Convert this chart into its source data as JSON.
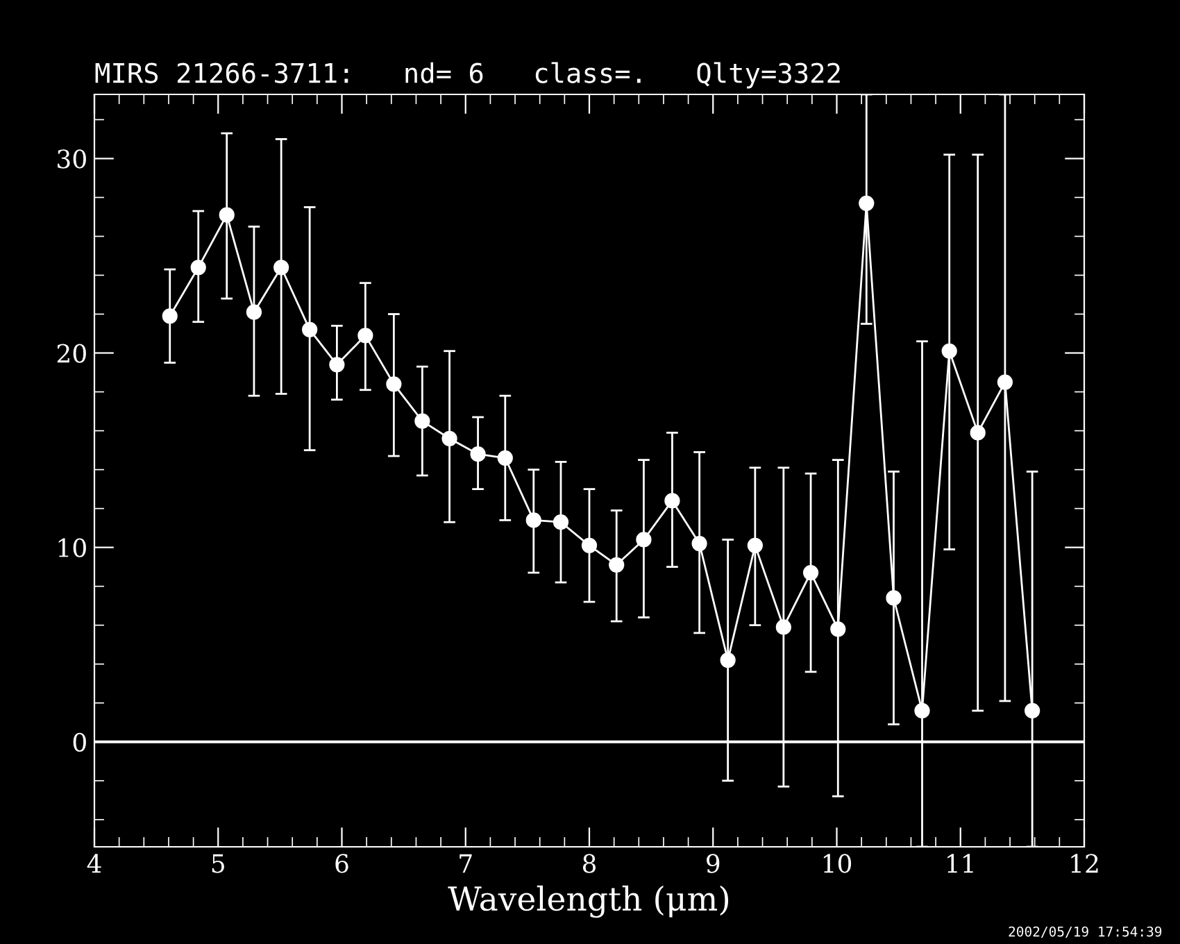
{
  "chart_data": {
    "type": "line",
    "title": "MIRS 21266-3711:   nd= 6   class=.   Qlty=3322",
    "xlabel": "Wavelength (μm)",
    "annotations": [
      "2002/05/19 17:54:39"
    ],
    "x": [
      4.61,
      4.84,
      5.07,
      5.29,
      5.51,
      5.74,
      5.96,
      6.19,
      6.42,
      6.65,
      6.87,
      7.1,
      7.32,
      7.55,
      7.77,
      8.0,
      8.22,
      8.44,
      8.67,
      8.89,
      9.12,
      9.34,
      9.57,
      9.79,
      10.01,
      10.24,
      10.46,
      10.69,
      10.91,
      11.14,
      11.36,
      11.58
    ],
    "series": [
      {
        "color": "#ffffff",
        "values": [
          21.9,
          24.4,
          27.1,
          22.1,
          24.4,
          21.2,
          19.4,
          20.9,
          18.4,
          16.5,
          15.6,
          14.8,
          14.6,
          11.4,
          11.3,
          10.1,
          9.1,
          10.4,
          12.4,
          10.2,
          4.2,
          10.1,
          5.9,
          8.7,
          5.8,
          27.7,
          7.4,
          1.6,
          20.1,
          15.9,
          18.5,
          1.6
        ],
        "errors": [
          [
            19.5,
            24.3
          ],
          [
            21.6,
            27.3
          ],
          [
            22.8,
            31.3
          ],
          [
            17.8,
            26.5
          ],
          [
            17.9,
            31.0
          ],
          [
            15.0,
            27.5
          ],
          [
            17.6,
            21.4
          ],
          [
            18.1,
            23.6
          ],
          [
            14.7,
            22.0
          ],
          [
            13.7,
            19.3
          ],
          [
            11.3,
            20.1
          ],
          [
            13.0,
            16.7
          ],
          [
            11.4,
            17.8
          ],
          [
            8.7,
            14.0
          ],
          [
            8.2,
            14.4
          ],
          [
            7.2,
            13.0
          ],
          [
            6.2,
            11.9
          ],
          [
            6.4,
            14.5
          ],
          [
            9.0,
            15.9
          ],
          [
            5.6,
            14.9
          ],
          [
            -2.0,
            10.4
          ],
          [
            6.0,
            14.1
          ],
          [
            -2.3,
            14.1
          ],
          [
            3.6,
            13.8
          ],
          [
            -2.8,
            14.5
          ],
          [
            21.5,
            33.3
          ],
          [
            0.9,
            13.9
          ],
          [
            -5.4,
            20.6
          ],
          [
            9.9,
            30.2
          ],
          [
            1.6,
            30.2
          ],
          [
            2.1,
            33.3
          ],
          [
            -5.4,
            13.9
          ]
        ]
      }
    ],
    "xlim": [
      4,
      12
    ],
    "ylim": [
      -5.4,
      33.3
    ],
    "xticks": [
      4,
      5,
      6,
      7,
      8,
      9,
      10,
      11,
      12
    ],
    "yticks": [
      0,
      10,
      20,
      30
    ],
    "ref_lines": [
      {
        "axis": "y",
        "value": 0,
        "color": "#ffffff"
      }
    ],
    "marker": "circle",
    "line_style": "solid",
    "grid": false,
    "legend": false
  }
}
